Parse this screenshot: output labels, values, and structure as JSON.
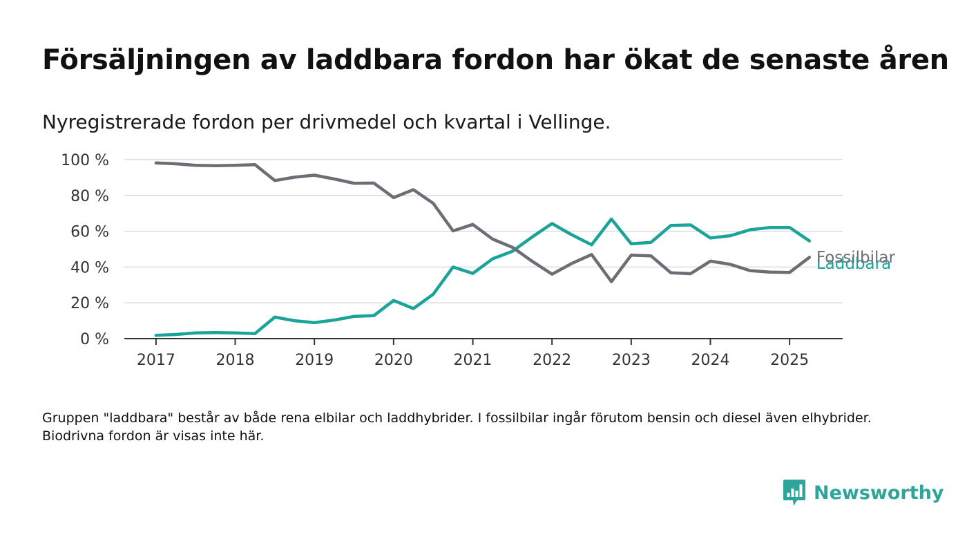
{
  "title": "Försäljningen av laddbara fordon har ökat de senaste åren",
  "subtitle": "Nyregistrerade fordon per drivmedel och kvartal i Vellinge.",
  "footnote": "Gruppen \"laddbara\" består av både rena elbilar och laddhybrider. I fossilbilar ingår förutom bensin och diesel även elhybrider. Biodrivna fordon är visas inte här.",
  "brand": {
    "name": "Newsworthy",
    "icon": "newsworthy-logo-icon",
    "color": "#2ea59a"
  },
  "chart_data": {
    "type": "line",
    "title": "",
    "xlabel": "",
    "ylabel": "",
    "ylim": [
      0,
      100
    ],
    "xlim": [
      2016.6,
      2025.67
    ],
    "y_ticks": [
      {
        "value": 0,
        "label": "0 %"
      },
      {
        "value": 20,
        "label": "20 %"
      },
      {
        "value": 40,
        "label": "40 %"
      },
      {
        "value": 60,
        "label": "60 %"
      },
      {
        "value": 80,
        "label": "80 %"
      },
      {
        "value": 100,
        "label": "100 %"
      }
    ],
    "x_ticks": [
      {
        "value": 2017,
        "label": "2017"
      },
      {
        "value": 2018,
        "label": "2018"
      },
      {
        "value": 2019,
        "label": "2019"
      },
      {
        "value": 2020,
        "label": "2020"
      },
      {
        "value": 2021,
        "label": "2021"
      },
      {
        "value": 2022,
        "label": "2022"
      },
      {
        "value": 2023,
        "label": "2023"
      },
      {
        "value": 2024,
        "label": "2024"
      },
      {
        "value": 2025,
        "label": "2025"
      }
    ],
    "grid": true,
    "legend": "end-of-line labels",
    "x": [
      "2017 Q1",
      "2017 Q2",
      "2017 Q3",
      "2017 Q4",
      "2018 Q1",
      "2018 Q2",
      "2018 Q3",
      "2018 Q4",
      "2019 Q1",
      "2019 Q2",
      "2019 Q3",
      "2019 Q4",
      "2020 Q1",
      "2020 Q2",
      "2020 Q3",
      "2020 Q4",
      "2021 Q1",
      "2021 Q2",
      "2021 Q3",
      "2021 Q4",
      "2022 Q1",
      "2022 Q2",
      "2022 Q3",
      "2022 Q4",
      "2023 Q1",
      "2023 Q2",
      "2023 Q3",
      "2023 Q4",
      "2024 Q1",
      "2024 Q2",
      "2024 Q3",
      "2024 Q4",
      "2025 Q1",
      "2025 Q2"
    ],
    "series": [
      {
        "name": "Laddbara",
        "color": "#1aa399",
        "values": [
          1.8,
          2.3,
          3.2,
          3.4,
          3.2,
          2.8,
          12.0,
          10.0,
          8.9,
          10.4,
          12.4,
          12.8,
          21.3,
          16.8,
          24.8,
          40.0,
          36.4,
          44.6,
          48.8,
          56.8,
          64.3,
          58.0,
          52.4,
          66.8,
          53.0,
          53.8,
          63.2,
          63.5,
          56.2,
          57.5,
          60.8,
          62.1,
          62.1,
          54.6
        ]
      },
      {
        "name": "Fossilbilar",
        "color": "#6e6d76",
        "values": [
          98.2,
          97.7,
          96.8,
          96.6,
          96.8,
          97.2,
          88.3,
          90.2,
          91.3,
          89.2,
          86.8,
          86.9,
          78.8,
          83.2,
          75.6,
          60.2,
          63.8,
          55.6,
          51.0,
          43.2,
          36.0,
          42.0,
          47.0,
          31.8,
          46.6,
          46.2,
          36.8,
          36.3,
          43.3,
          41.5,
          38.0,
          37.2,
          37.0,
          45.4
        ]
      }
    ]
  }
}
